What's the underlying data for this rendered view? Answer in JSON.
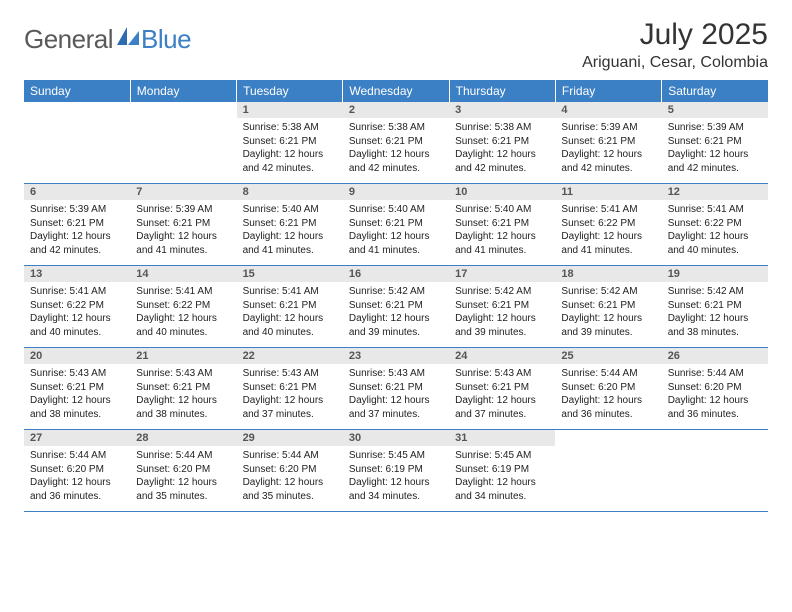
{
  "brand": {
    "part1": "General",
    "part2": "Blue"
  },
  "title": "July 2025",
  "location": "Ariguani, Cesar, Colombia",
  "colors": {
    "header_bg": "#3b7fc4",
    "daynum_bg": "#e8e8e8",
    "rule": "#3b7fc4"
  },
  "weekdays": [
    "Sunday",
    "Monday",
    "Tuesday",
    "Wednesday",
    "Thursday",
    "Friday",
    "Saturday"
  ],
  "weeks": [
    [
      null,
      null,
      {
        "n": "1",
        "sr": "5:38 AM",
        "ss": "6:21 PM",
        "dl": "12 hours and 42 minutes."
      },
      {
        "n": "2",
        "sr": "5:38 AM",
        "ss": "6:21 PM",
        "dl": "12 hours and 42 minutes."
      },
      {
        "n": "3",
        "sr": "5:38 AM",
        "ss": "6:21 PM",
        "dl": "12 hours and 42 minutes."
      },
      {
        "n": "4",
        "sr": "5:39 AM",
        "ss": "6:21 PM",
        "dl": "12 hours and 42 minutes."
      },
      {
        "n": "5",
        "sr": "5:39 AM",
        "ss": "6:21 PM",
        "dl": "12 hours and 42 minutes."
      }
    ],
    [
      {
        "n": "6",
        "sr": "5:39 AM",
        "ss": "6:21 PM",
        "dl": "12 hours and 42 minutes."
      },
      {
        "n": "7",
        "sr": "5:39 AM",
        "ss": "6:21 PM",
        "dl": "12 hours and 41 minutes."
      },
      {
        "n": "8",
        "sr": "5:40 AM",
        "ss": "6:21 PM",
        "dl": "12 hours and 41 minutes."
      },
      {
        "n": "9",
        "sr": "5:40 AM",
        "ss": "6:21 PM",
        "dl": "12 hours and 41 minutes."
      },
      {
        "n": "10",
        "sr": "5:40 AM",
        "ss": "6:21 PM",
        "dl": "12 hours and 41 minutes."
      },
      {
        "n": "11",
        "sr": "5:41 AM",
        "ss": "6:22 PM",
        "dl": "12 hours and 41 minutes."
      },
      {
        "n": "12",
        "sr": "5:41 AM",
        "ss": "6:22 PM",
        "dl": "12 hours and 40 minutes."
      }
    ],
    [
      {
        "n": "13",
        "sr": "5:41 AM",
        "ss": "6:22 PM",
        "dl": "12 hours and 40 minutes."
      },
      {
        "n": "14",
        "sr": "5:41 AM",
        "ss": "6:22 PM",
        "dl": "12 hours and 40 minutes."
      },
      {
        "n": "15",
        "sr": "5:41 AM",
        "ss": "6:21 PM",
        "dl": "12 hours and 40 minutes."
      },
      {
        "n": "16",
        "sr": "5:42 AM",
        "ss": "6:21 PM",
        "dl": "12 hours and 39 minutes."
      },
      {
        "n": "17",
        "sr": "5:42 AM",
        "ss": "6:21 PM",
        "dl": "12 hours and 39 minutes."
      },
      {
        "n": "18",
        "sr": "5:42 AM",
        "ss": "6:21 PM",
        "dl": "12 hours and 39 minutes."
      },
      {
        "n": "19",
        "sr": "5:42 AM",
        "ss": "6:21 PM",
        "dl": "12 hours and 38 minutes."
      }
    ],
    [
      {
        "n": "20",
        "sr": "5:43 AM",
        "ss": "6:21 PM",
        "dl": "12 hours and 38 minutes."
      },
      {
        "n": "21",
        "sr": "5:43 AM",
        "ss": "6:21 PM",
        "dl": "12 hours and 38 minutes."
      },
      {
        "n": "22",
        "sr": "5:43 AM",
        "ss": "6:21 PM",
        "dl": "12 hours and 37 minutes."
      },
      {
        "n": "23",
        "sr": "5:43 AM",
        "ss": "6:21 PM",
        "dl": "12 hours and 37 minutes."
      },
      {
        "n": "24",
        "sr": "5:43 AM",
        "ss": "6:21 PM",
        "dl": "12 hours and 37 minutes."
      },
      {
        "n": "25",
        "sr": "5:44 AM",
        "ss": "6:20 PM",
        "dl": "12 hours and 36 minutes."
      },
      {
        "n": "26",
        "sr": "5:44 AM",
        "ss": "6:20 PM",
        "dl": "12 hours and 36 minutes."
      }
    ],
    [
      {
        "n": "27",
        "sr": "5:44 AM",
        "ss": "6:20 PM",
        "dl": "12 hours and 36 minutes."
      },
      {
        "n": "28",
        "sr": "5:44 AM",
        "ss": "6:20 PM",
        "dl": "12 hours and 35 minutes."
      },
      {
        "n": "29",
        "sr": "5:44 AM",
        "ss": "6:20 PM",
        "dl": "12 hours and 35 minutes."
      },
      {
        "n": "30",
        "sr": "5:45 AM",
        "ss": "6:19 PM",
        "dl": "12 hours and 34 minutes."
      },
      {
        "n": "31",
        "sr": "5:45 AM",
        "ss": "6:19 PM",
        "dl": "12 hours and 34 minutes."
      },
      null,
      null
    ]
  ],
  "labels": {
    "sunrise": "Sunrise:",
    "sunset": "Sunset:",
    "daylight": "Daylight:"
  }
}
